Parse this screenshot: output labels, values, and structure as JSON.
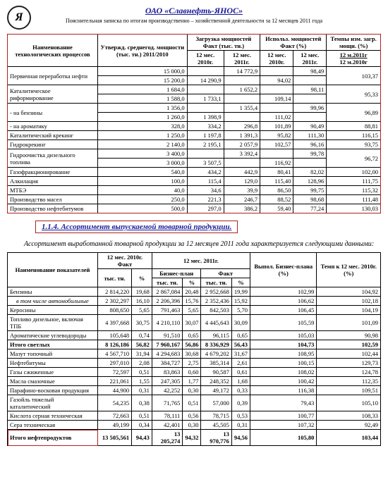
{
  "header": {
    "company": "ОАО  «Славнефть-ЯНОС»",
    "subtitle": "Пояснительная записка  по итогам  производственно – хозяйственной деятельности за 12 месяцев 2011 года"
  },
  "table1": {
    "headers": {
      "name": "Наименование технологических процессов",
      "approved": "Утвержд. среднегод. мощности (тыс. тн.) 2011/2010",
      "loading": "Загрузка мощностей Факт (тыс. тн.)",
      "usage": "Использ. мощностей Факт  (%)",
      "tempo": "Темпы изм. загр. мощн. (%)",
      "p2010": "12 мес. 2010г.",
      "p2011": "12 мес. 2011г.",
      "r2011": "12 м.2011г",
      "r2010": "12 м.2010г"
    },
    "rows": [
      {
        "name": "Первичная переработка нефти",
        "a1": "15 000,0",
        "a2": "15 200,0",
        "l10": "14 290,9",
        "l11": "14 772,9",
        "u10": "94,02",
        "u11": "98,49",
        "t": "103,37",
        "merge": true
      },
      {
        "name": "Каталитическое риформирование",
        "a1": "1 684,0",
        "a2": "1 588,0",
        "l10": "1 733,1",
        "l11": "1 652,2",
        "u10": "109,14",
        "u11": "98,11",
        "t": "95,33",
        "merge": true
      },
      {
        "name": "- на бензины",
        "a1": "1 356,0",
        "a2": "1 260,0",
        "l10": "1 398,9",
        "l11": "1 355,4",
        "u10": "111,02",
        "u11": "99,96",
        "t": "96,89",
        "merge": true
      },
      {
        "name": "- на ароматику",
        "a1": "328,0",
        "a2": "",
        "l10": "334,2",
        "l11": "296,8",
        "u10": "101,89",
        "u11": "90,49",
        "t": "88,81"
      },
      {
        "name": "Каталитический крекинг",
        "a1": "1 250,0",
        "a2": "",
        "l10": "1 197,8",
        "l11": "1 391,3",
        "u10": "95,82",
        "u11": "111,30",
        "t": "116,15"
      },
      {
        "name": "Гидрокрекинг",
        "a1": "2 140,0",
        "a2": "",
        "l10": "2 195,1",
        "l11": "2 057,9",
        "u10": "102,57",
        "u11": "96,16",
        "t": "93,75"
      },
      {
        "name": "Гидроочистка дизельного топлива",
        "a1": "3 400,0",
        "a2": "3 000,0",
        "l10": "3 507,5",
        "l11": "3 392,4",
        "u10": "116,92",
        "u11": "99,78",
        "t": "96,72",
        "merge": true
      },
      {
        "name": "Газофракционирование",
        "a1": "540,0",
        "a2": "",
        "l10": "434,2",
        "l11": "442,9",
        "u10": "80,41",
        "u11": "82,02",
        "t": "102,00"
      },
      {
        "name": "Алкилация",
        "a1": "100,0",
        "a2": "",
        "l10": "115,4",
        "l11": "129,0",
        "u10": "115,40",
        "u11": "128,96",
        "t": "111,75"
      },
      {
        "name": "МТБЭ",
        "a1": "40,0",
        "a2": "",
        "l10": "34,6",
        "l11": "39,9",
        "u10": "86,50",
        "u11": "99,75",
        "t": "115,32"
      },
      {
        "name": "Производство масел",
        "a1": "250,0",
        "a2": "",
        "l10": "221,3",
        "l11": "246,7",
        "u10": "88,52",
        "u11": "98,68",
        "t": "111,48"
      },
      {
        "name": "Производство нефтебитумов",
        "a1": "500,0",
        "a2": "",
        "l10": "297,0",
        "l11": "386,2",
        "u10": "59,40",
        "u11": "77,24",
        "t": "130,03"
      }
    ]
  },
  "section": "1.1.4. Ассортимент выпускаемой товарной продукции.",
  "paragraph": "Ассортимент выработанной товарной продукции за 12 месяцев 2011 года характеризуется следующими данными:",
  "table2": {
    "headers": {
      "name": "Наименование показателей",
      "p2010": "12 мес. 2010г. Факт",
      "p2011": "12 мес. 2011г.",
      "bp": "Бизнес-план",
      "fact": "Факт",
      "tys": "тыс. тн.",
      "pct": "%",
      "vyp": "Выпол. Бизнес-плана (%)",
      "temp": "Темп к 12 мес. 2010г. (%)"
    },
    "rows": [
      {
        "n": "Бензины",
        "f10": "2 814,220",
        "p10": "19,68",
        "bp": "2 867,084",
        "bpp": "20,48",
        "f11": "2 952,668",
        "p11": "19,99",
        "v": "102,99",
        "t": "104,92"
      },
      {
        "n": "в том числе автомобильные",
        "f10": "2 302,297",
        "p10": "16,10",
        "bp": "2 206,396",
        "bpp": "15,76",
        "f11": "2 352,436",
        "p11": "15,92",
        "v": "106,62",
        "t": "102,18",
        "it": true
      },
      {
        "n": "Керосины",
        "f10": "808,650",
        "p10": "5,65",
        "bp": "791,463",
        "bpp": "5,65",
        "f11": "842,503",
        "p11": "5,70",
        "v": "106,45",
        "t": "104,19"
      },
      {
        "n": "Топливо дизельное, включая ТПБ",
        "f10": "4 397,668",
        "p10": "30,75",
        "bp": "4 210,110",
        "bpp": "30,07",
        "f11": "4 445,643",
        "p11": "30,09",
        "v": "105,59",
        "t": "101,09"
      },
      {
        "n": "Ароматические углеводороды",
        "f10": "105,648",
        "p10": "0,74",
        "bp": "91,510",
        "bpp": "0,65",
        "f11": "96,115",
        "p11": "0,65",
        "v": "105,03",
        "t": "90,98"
      },
      {
        "n": "Итого светлых",
        "f10": "8 126,186",
        "p10": "56,82",
        "bp": "7 960,167",
        "bpp": "56,86",
        "f11": "8 336,929",
        "p11": "56,43",
        "v": "104,73",
        "t": "102,59",
        "b": true
      },
      {
        "n": "Мазут топочный",
        "f10": "4 567,710",
        "p10": "31,94",
        "bp": "4 294,683",
        "bpp": "30,68",
        "f11": "4 679,202",
        "p11": "31,67",
        "v": "108,95",
        "t": "102,44"
      },
      {
        "n": "Нефтебитумы",
        "f10": "297,010",
        "p10": "2,08",
        "bp": "384,727",
        "bpp": "2,75",
        "f11": "385,314",
        "p11": "2,61",
        "v": "100,15",
        "t": "129,73"
      },
      {
        "n": "Газы сжиженные",
        "f10": "72,597",
        "p10": "0,51",
        "bp": "83,863",
        "bpp": "0,60",
        "f11": "90,587",
        "p11": "0,61",
        "v": "108,02",
        "t": "124,78"
      },
      {
        "n": "Масла смазочные",
        "f10": "221,061",
        "p10": "1,55",
        "bp": "247,305",
        "bpp": "1,77",
        "f11": "248,352",
        "p11": "1,68",
        "v": "100,42",
        "t": "112,35"
      },
      {
        "n": "Парафино-восковая продукция",
        "f10": "44,900",
        "p10": "0,31",
        "bp": "42,252",
        "bpp": "0,30",
        "f11": "49,172",
        "p11": "0,33",
        "v": "116,38",
        "t": "109,51"
      },
      {
        "n": "Газойль тяжелый каталитический",
        "f10": "54,235",
        "p10": "0,38",
        "bp": "71,765",
        "bpp": "0,51",
        "f11": "57,000",
        "p11": "0,39",
        "v": "79,43",
        "t": "105,10"
      },
      {
        "n": "Кислота серная техническая",
        "f10": "72,663",
        "p10": "0,51",
        "bp": "78,111",
        "bpp": "0,56",
        "f11": "78,715",
        "p11": "0,53",
        "v": "100,77",
        "t": "108,33"
      },
      {
        "n": "Сера техническая",
        "f10": "49,199",
        "p10": "0,34",
        "bp": "42,401",
        "bpp": "0,30",
        "f11": "45,505",
        "p11": "0,31",
        "v": "107,32",
        "t": "92,49"
      },
      {
        "n": "Итого нефтепродуктов",
        "f10": "13 505,561",
        "p10": "94,43",
        "bp": "13 205,274",
        "bpp": "94,32",
        "f11": "13 970,776",
        "p11": "94,56",
        "v": "105,80",
        "t": "103,44",
        "b": true
      }
    ]
  }
}
